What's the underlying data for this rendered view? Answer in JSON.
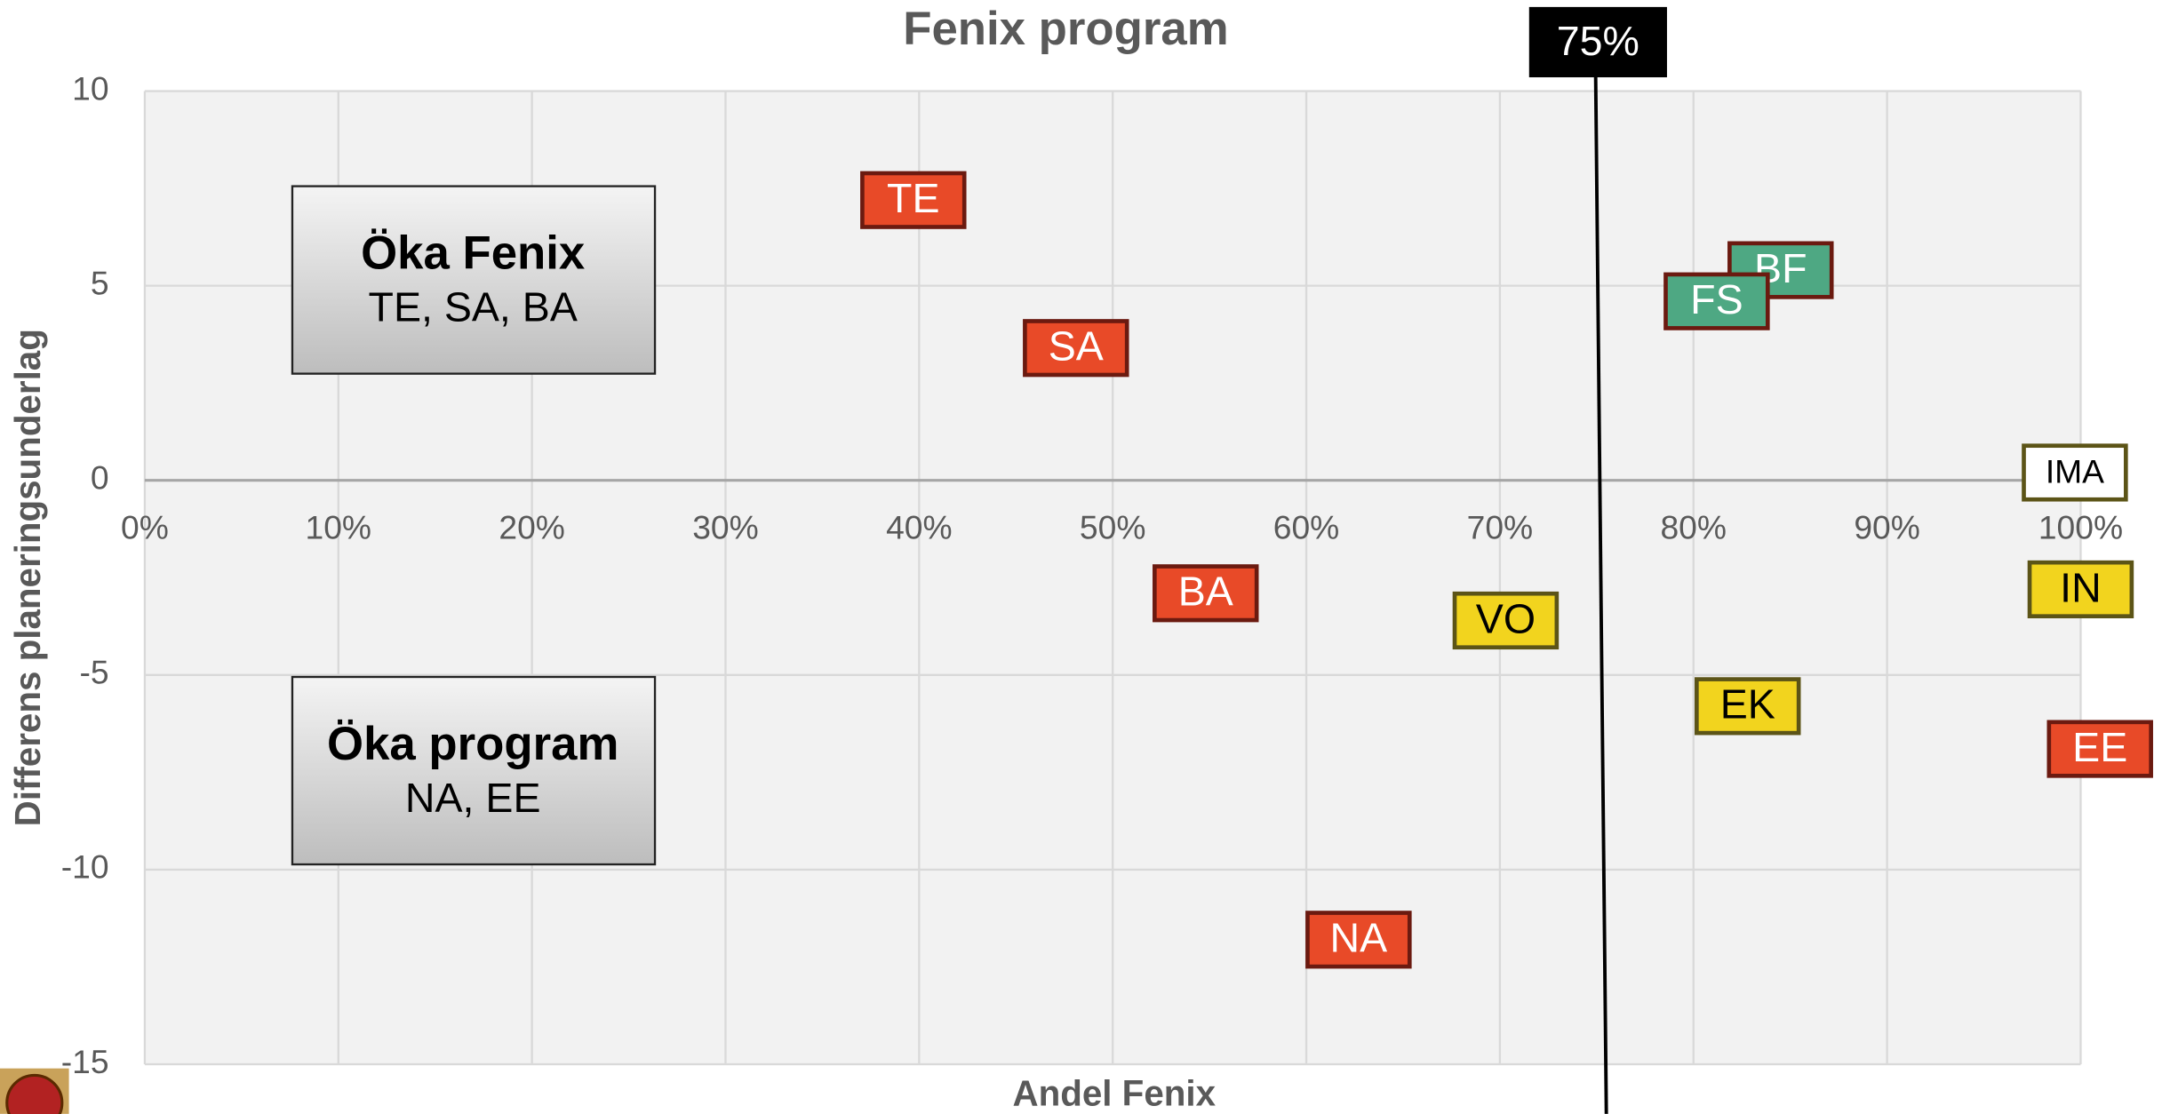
{
  "chart_data": {
    "type": "scatter",
    "title": "Fenix program",
    "x_label": "Andel Fenix",
    "y_label": "Differens planeringsunderlag",
    "labels": [
      "TE",
      "SA",
      "BA",
      "VO",
      "NA",
      "BF",
      "FS",
      "EK",
      "IMA",
      "IN",
      "EE"
    ],
    "x": [
      39.7,
      48.1,
      54.8,
      70.3,
      62.7,
      84.5,
      81.2,
      82.8,
      99.7,
      100,
      101
    ],
    "values": [
      7.2,
      3.4,
      -2.9,
      -3.6,
      -11.8,
      5.4,
      4.6,
      -5.8,
      0.2,
      -2.8,
      -6.9
    ],
    "colors": [
      "#e84a28",
      "#e84a28",
      "#e84a28",
      "#f2d41e",
      "#e84a28",
      "#4ea883",
      "#4ea883",
      "#f2d41e",
      "#ffffff",
      "#f2d41e",
      "#e84a28"
    ],
    "xlim": [
      0,
      100
    ],
    "ylim": [
      -15,
      10
    ],
    "xticks": [
      {
        "value": 0,
        "label": "0%"
      },
      {
        "value": 10,
        "label": "10%"
      },
      {
        "value": 20,
        "label": "20%"
      },
      {
        "value": 30,
        "label": "30%"
      },
      {
        "value": 40,
        "label": "40%"
      },
      {
        "value": 50,
        "label": "50%"
      },
      {
        "value": 60,
        "label": "60%"
      },
      {
        "value": 70,
        "label": "70%"
      },
      {
        "value": 80,
        "label": "80%"
      },
      {
        "value": 90,
        "label": "90%"
      },
      {
        "value": 100,
        "label": "100%"
      }
    ],
    "yticks": [
      10,
      5,
      0,
      -5,
      -10,
      -15
    ],
    "grid": true,
    "threshold": {
      "value": 75,
      "label": "75%"
    },
    "boxes": [
      {
        "title": "Öka Fenix",
        "text": "TE, SA, BA"
      },
      {
        "title": "Öka program",
        "text": "NA, EE"
      }
    ]
  }
}
